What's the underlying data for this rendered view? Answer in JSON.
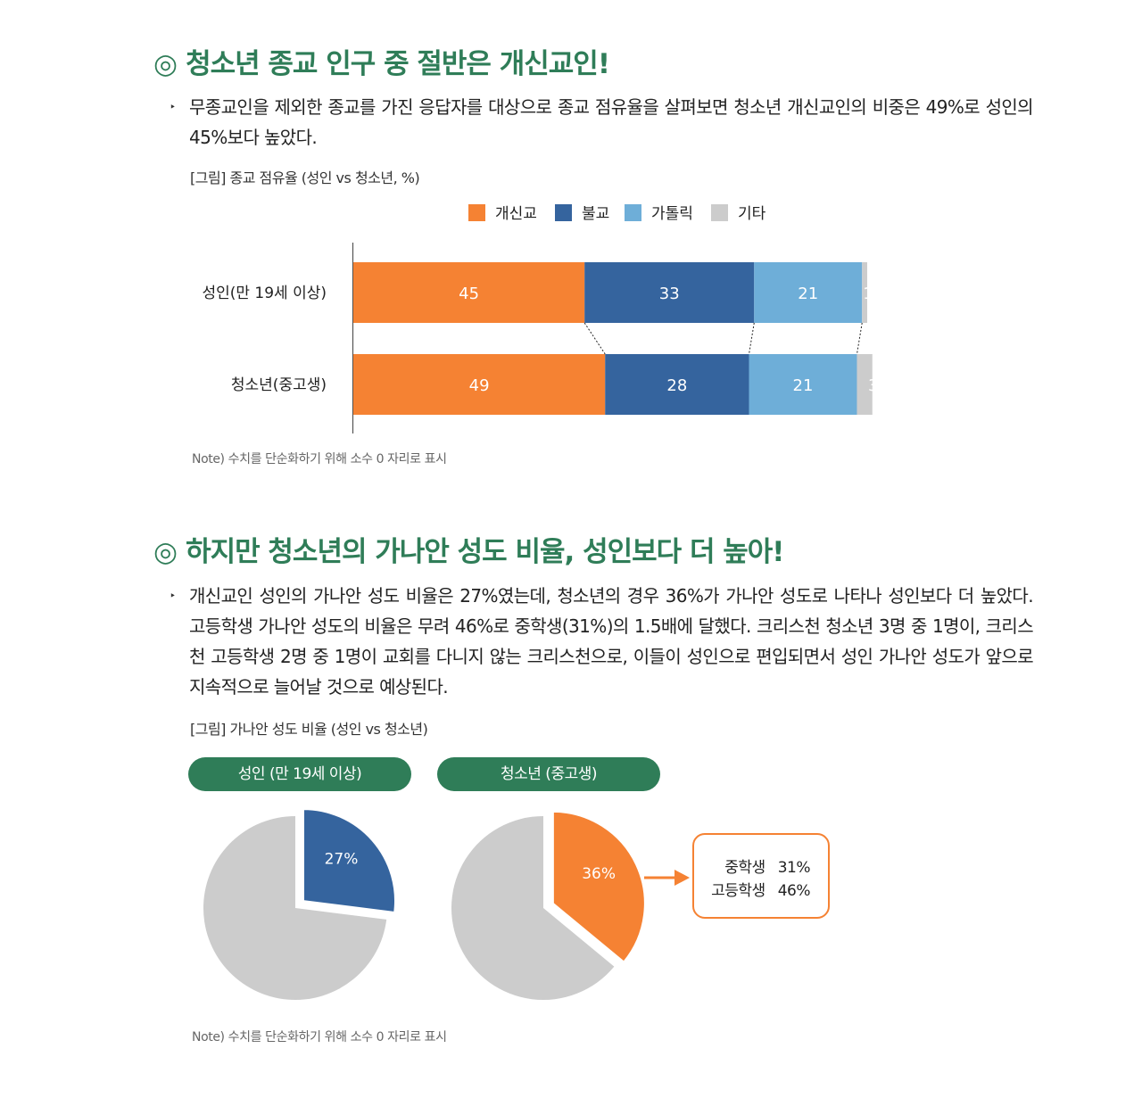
{
  "section1": {
    "mark": "◎",
    "title": "청소년 종교 인구 중 절반은 개신교인!",
    "bullet": "‣",
    "paragraph": "무종교인을 제외한 종교를 가진 응답자를 대상으로 종교 점유율을 살펴보면 청소년 개신교인의 비중은 49%로 성인의 45%보다 높았다.",
    "caption": "[그림] 종교 점유율 (성인 vs 청소년, %)",
    "note": "Note) 수치를 단순화하기 위해 소수 0 자리로 표시"
  },
  "section2": {
    "mark": "◎",
    "title": "하지만 청소년의 가나안 성도 비율, 성인보다 더 높아!",
    "bullet": "‣",
    "paragraph": "개신교인 성인의 가나안 성도 비율은 27%였는데, 청소년의 경우 36%가 가나안 성도로 나타나 성인보다 더 높았다. 고등학생 가나안 성도의 비율은 무려 46%로 중학생(31%)의 1.5배에 달했다. 크리스천 청소년 3명 중 1명이, 크리스천 고등학생 2명 중 1명이 교회를 다니지 않는 크리스천으로, 이들이 성인으로 편입되면서 성인 가나안 성도가 앞으로 지속적으로 늘어날 것으로 예상된다.",
    "caption": "[그림] 가나안 성도 비율 (성인 vs 청소년)",
    "note": "Note) 수치를 단순화하기 위해 소수 0 자리로 표시"
  },
  "colors": {
    "protestant": "#f58233",
    "buddhist": "#35649e",
    "catholic": "#6eaed8",
    "other": "#cccccc",
    "green": "#2f7d58"
  },
  "chart_data": [
    {
      "type": "bar",
      "orientation": "horizontal-stacked",
      "categories": [
        "성인(만 19세 이상)",
        "청소년(중고생)"
      ],
      "series": [
        {
          "name": "개신교",
          "values": [
            45,
            49
          ]
        },
        {
          "name": "불교",
          "values": [
            33,
            28
          ]
        },
        {
          "name": "가톨릭",
          "values": [
            21,
            21
          ]
        },
        {
          "name": "기타",
          "values": [
            1,
            3
          ]
        }
      ],
      "legend": "top",
      "xlim": [
        0,
        100
      ]
    },
    {
      "type": "pie",
      "label": "성인 (만 19세 이상)",
      "slices": [
        {
          "name": "가나안 성도",
          "value": 27,
          "label": "27%"
        },
        {
          "name": "",
          "value": 73,
          "label": ""
        }
      ]
    },
    {
      "type": "pie",
      "label": "청소년 (중고생)",
      "slices": [
        {
          "name": "가나안 성도",
          "value": 36,
          "label": "36%"
        },
        {
          "name": "",
          "value": 64,
          "label": ""
        }
      ],
      "breakdown": [
        {
          "name": "중학생",
          "value": "31%"
        },
        {
          "name": "고등학생",
          "value": "46%"
        }
      ]
    }
  ]
}
